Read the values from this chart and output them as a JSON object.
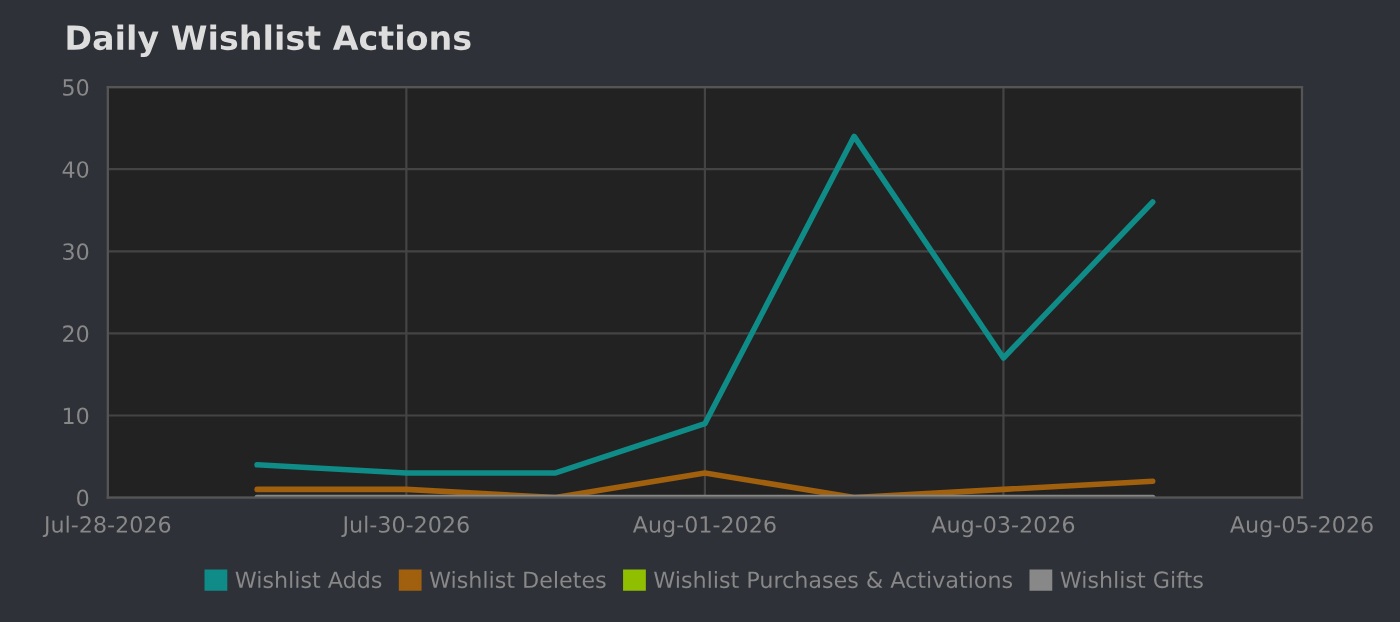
{
  "chart_data": {
    "type": "line",
    "title": "Daily Wishlist Actions",
    "x": [
      "2026-07-29",
      "2026-07-30",
      "2026-07-31",
      "2026-08-01",
      "2026-08-02",
      "2026-08-03",
      "2026-08-04"
    ],
    "series": [
      {
        "name": "Wishlist Adds",
        "color": "#0f8c88",
        "values": [
          4,
          3,
          3,
          9,
          44,
          17,
          36
        ]
      },
      {
        "name": "Wishlist Deletes",
        "color": "#a0600e",
        "values": [
          1,
          1,
          0,
          3,
          0,
          1,
          2
        ]
      },
      {
        "name": "Wishlist Purchases & Activations",
        "color": "#8fbf00",
        "values": [
          null,
          null,
          null,
          null,
          null,
          null,
          null
        ]
      },
      {
        "name": "Wishlist Gifts",
        "color": "#888888",
        "values": [
          0,
          0,
          0,
          0,
          0,
          0,
          0
        ]
      }
    ],
    "xlim": [
      "2026-07-28",
      "2026-08-05"
    ],
    "xticks": [
      {
        "value": "2026-07-28",
        "label": "Jul-28-2026"
      },
      {
        "value": "2026-07-30",
        "label": "Jul-30-2026"
      },
      {
        "value": "2026-08-01",
        "label": "Aug-01-2026"
      },
      {
        "value": "2026-08-03",
        "label": "Aug-03-2026"
      },
      {
        "value": "2026-08-05",
        "label": "Aug-05-2026"
      }
    ],
    "ylim": [
      0,
      50
    ],
    "yticks": [
      0,
      10,
      20,
      30,
      40,
      50
    ],
    "grid": true,
    "legend": "bottom",
    "marker": "none",
    "line_style": "solid"
  }
}
